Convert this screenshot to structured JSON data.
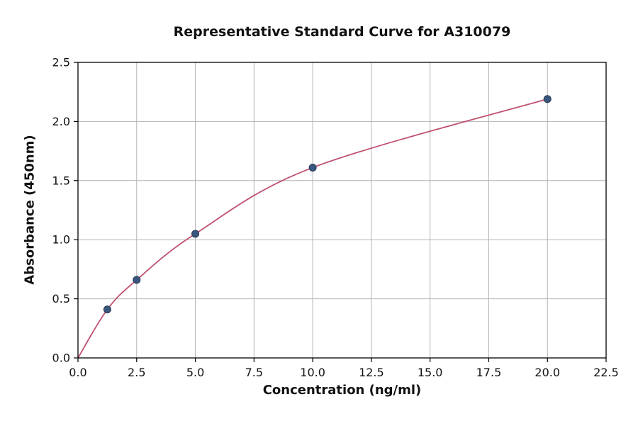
{
  "chart_data": {
    "type": "scatter",
    "title": "Representative Standard Curve for A310079",
    "xlabel": "Concentration (ng/ml)",
    "ylabel": "Absorbance (450nm)",
    "xlim": [
      0,
      22.5
    ],
    "ylim": [
      0,
      2.5
    ],
    "xticks": [
      0,
      2.5,
      5,
      7.5,
      10,
      12.5,
      15,
      17.5,
      20,
      22.5
    ],
    "xtick_labels": [
      "0.0",
      "2.5",
      "5.0",
      "7.5",
      "10.0",
      "12.5",
      "15.0",
      "17.5",
      "20.0",
      "22.5"
    ],
    "yticks": [
      0,
      0.5,
      1,
      1.5,
      2,
      2.5
    ],
    "ytick_labels": [
      "0.0",
      "0.5",
      "1.0",
      "1.5",
      "2.0",
      "2.5"
    ],
    "points": {
      "x": [
        1.25,
        2.5,
        5,
        10,
        20
      ],
      "y": [
        0.41,
        0.66,
        1.05,
        1.61,
        2.19
      ]
    },
    "curve_points": {
      "x": [
        0,
        1.25,
        2.5,
        5,
        10,
        20
      ],
      "y": [
        0,
        0.41,
        0.66,
        1.05,
        1.61,
        2.19
      ]
    },
    "grid": true,
    "legend_position": "none",
    "colors": {
      "curve": "#c0516f",
      "marker_fill": "#39567c",
      "marker_edge": "#243a56",
      "grid": "#b3b3b3",
      "axis": "#000000"
    }
  }
}
